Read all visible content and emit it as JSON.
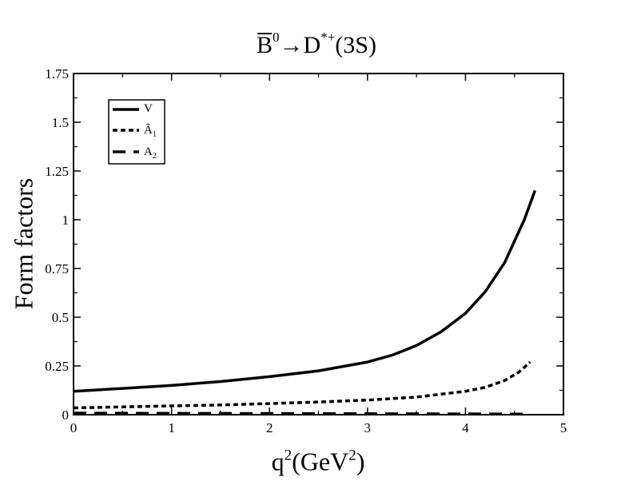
{
  "chart_data": {
    "type": "line",
    "title": {
      "parent": "B",
      "parent_sup": "0",
      "arrow": "→",
      "daughter": "D",
      "daughter_sup": "*+",
      "state": "(3S)"
    },
    "xlabel": {
      "base": "q",
      "sup": "2",
      "unit_open": "(GeV",
      "unit_sup": "2",
      "unit_close": ")"
    },
    "ylabel": "Form factors",
    "xlim": [
      0,
      5
    ],
    "ylim": [
      0,
      1.75
    ],
    "x_ticks": [
      0,
      1,
      2,
      3,
      4,
      5
    ],
    "x_tick_labels": [
      "0",
      "1",
      "2",
      "3",
      "4",
      "5"
    ],
    "y_ticks": [
      0,
      0.25,
      0.5,
      0.75,
      1,
      1.25,
      1.5,
      1.75
    ],
    "y_tick_labels": [
      "0",
      "0.25",
      "0.5",
      "0.75",
      "1",
      "1.25",
      "1.5",
      "1.75"
    ],
    "grid": false,
    "legend_position": "top-left",
    "series": [
      {
        "name": "V",
        "name_sub": "",
        "style": "solid",
        "x": [
          0,
          0.5,
          1,
          1.5,
          2,
          2.5,
          3,
          3.25,
          3.5,
          3.75,
          4,
          4.2,
          4.4,
          4.6,
          4.71
        ],
        "y": [
          0.12,
          0.135,
          0.15,
          0.17,
          0.195,
          0.225,
          0.27,
          0.305,
          0.355,
          0.425,
          0.52,
          0.63,
          0.78,
          1.0,
          1.15
        ]
      },
      {
        "name": "Ã",
        "name_sub": "1",
        "style": "dashed",
        "x": [
          0,
          0.5,
          1,
          1.5,
          2,
          2.5,
          3,
          3.5,
          4,
          4.2,
          4.4,
          4.55,
          4.66
        ],
        "y": [
          0.035,
          0.04,
          0.045,
          0.05,
          0.057,
          0.065,
          0.075,
          0.09,
          0.12,
          0.14,
          0.175,
          0.22,
          0.27
        ]
      },
      {
        "name": "A",
        "name_sub": "2",
        "style": "long-dash",
        "x": [
          0,
          1,
          2,
          3,
          4,
          4.66
        ],
        "y": [
          0.008,
          0.007,
          0.006,
          0.005,
          0.004,
          0.003
        ]
      }
    ]
  }
}
